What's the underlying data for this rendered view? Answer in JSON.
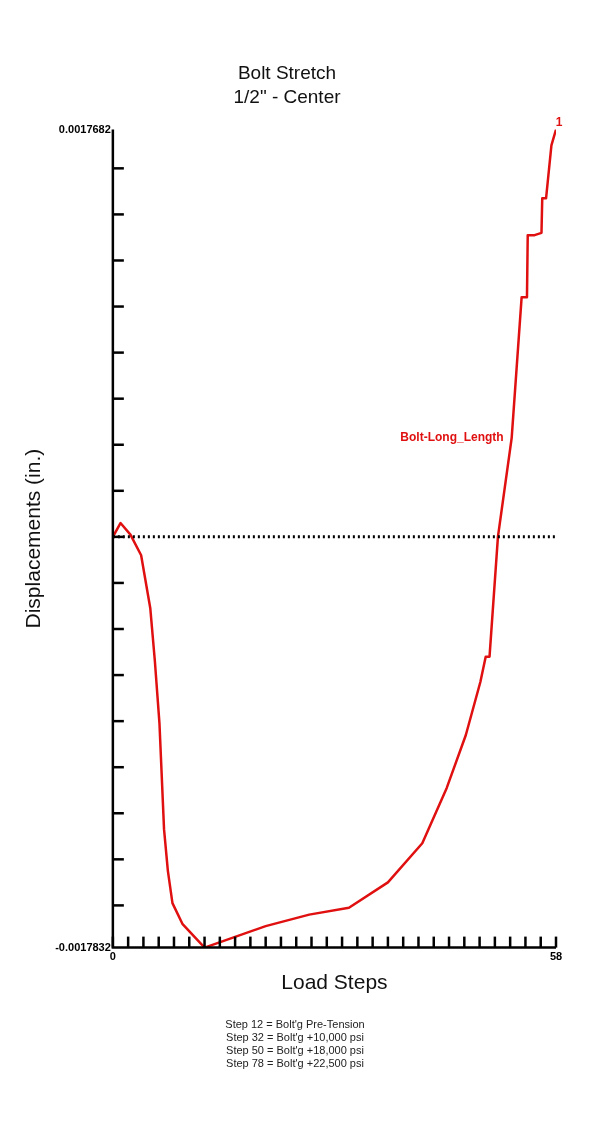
{
  "chart_data": {
    "type": "line",
    "title": "Bolt Stretch",
    "subtitle": "1/2\" - Center",
    "xlabel": "Load Steps",
    "ylabel": "Displacements (in.)",
    "xlim": [
      0,
      58
    ],
    "xticks": [
      0,
      {
        "value": 2,
        "label": null
      },
      {
        "value": 4,
        "label": null
      },
      {
        "value": 6,
        "label": null
      },
      {
        "value": 8,
        "label": null
      },
      {
        "value": 10,
        "label": null
      },
      {
        "value": 12,
        "label": null
      },
      {
        "value": 14,
        "label": null
      },
      {
        "value": 16,
        "label": null
      },
      {
        "value": 18,
        "label": null
      },
      {
        "value": 20,
        "label": null
      },
      {
        "value": 22,
        "label": null
      },
      {
        "value": 24,
        "label": null
      },
      {
        "value": 26,
        "label": null
      },
      {
        "value": 28,
        "label": null
      },
      {
        "value": 30,
        "label": null
      },
      {
        "value": 32,
        "label": null
      },
      {
        "value": 34,
        "label": null
      },
      {
        "value": 36,
        "label": null
      },
      {
        "value": 38,
        "label": null
      },
      {
        "value": 40,
        "label": null
      },
      {
        "value": 42,
        "label": null
      },
      {
        "value": 44,
        "label": null
      },
      {
        "value": 46,
        "label": null
      },
      {
        "value": 48,
        "label": null
      },
      {
        "value": 50,
        "label": null
      },
      {
        "value": 52,
        "label": null
      },
      {
        "value": 54,
        "label": null
      },
      {
        "value": 56,
        "label": null
      },
      58
    ],
    "ylim": [
      -0.0017832,
      0.0017682
    ],
    "yticks": [
      -0.0017832,
      {
        "value": -0.0016,
        "label": null
      },
      {
        "value": -0.0014,
        "label": null
      },
      {
        "value": -0.0012,
        "label": null
      },
      {
        "value": -0.001,
        "label": null
      },
      {
        "value": -0.0008,
        "label": null
      },
      {
        "value": -0.0006,
        "label": null
      },
      {
        "value": -0.0004,
        "label": null
      },
      {
        "value": -0.0002,
        "label": null
      },
      {
        "value": 0,
        "label": null
      },
      {
        "value": 0.0002,
        "label": null
      },
      {
        "value": 0.0004,
        "label": null
      },
      {
        "value": 0.0006,
        "label": null
      },
      {
        "value": 0.0008,
        "label": null
      },
      {
        "value": 0.001,
        "label": null
      },
      {
        "value": 0.0012,
        "label": null
      },
      {
        "value": 0.0014,
        "label": null
      },
      {
        "value": 0.0016,
        "label": null
      },
      0.0017682
    ],
    "grid": false,
    "legend": false,
    "marker": "none",
    "line_style": "solid",
    "series": [
      {
        "name": "Bolt-Long_Length",
        "color": "#e01010",
        "x": [
          0,
          1,
          2.3,
          3.7,
          4.9,
          5.5,
          6.1,
          6.7,
          7.2,
          7.8,
          9.1,
          12,
          20,
          25.7,
          30.9,
          36,
          40.5,
          43.7,
          46.2,
          48.1,
          48.8,
          49.3,
          50.4,
          52.2,
          53.5,
          54.2,
          54.3,
          55.2,
          56.1,
          56.2,
          56.7,
          57.4,
          58
        ],
        "values": [
          0,
          6e-05,
          1e-05,
          -8e-05,
          -0.00031,
          -0.00054,
          -0.00081,
          -0.00127,
          -0.00145,
          -0.00159,
          -0.00168,
          -0.0017832,
          -0.00169,
          -0.00164,
          -0.00161,
          -0.0015,
          -0.00133,
          -0.00109,
          -0.00086,
          -0.00063,
          -0.00052,
          -0.00052,
          0,
          0.00043,
          0.00104,
          0.00104,
          0.00131,
          0.00131,
          0.00132,
          0.00147,
          0.00147,
          0.0017,
          0.0017682
        ]
      }
    ],
    "ref_lines": [
      {
        "axis": "y",
        "value": 0,
        "line_style": "dotted",
        "color": "#000000"
      }
    ],
    "annotations": [
      "1",
      "Step 12 = Bolt'g Pre-Tension",
      "Step 32 = Bolt'g +10,000 psi",
      "Step 50 = Bolt'g +18,000 psi",
      "Step 78 = Bolt'g +22,500 psi"
    ]
  }
}
